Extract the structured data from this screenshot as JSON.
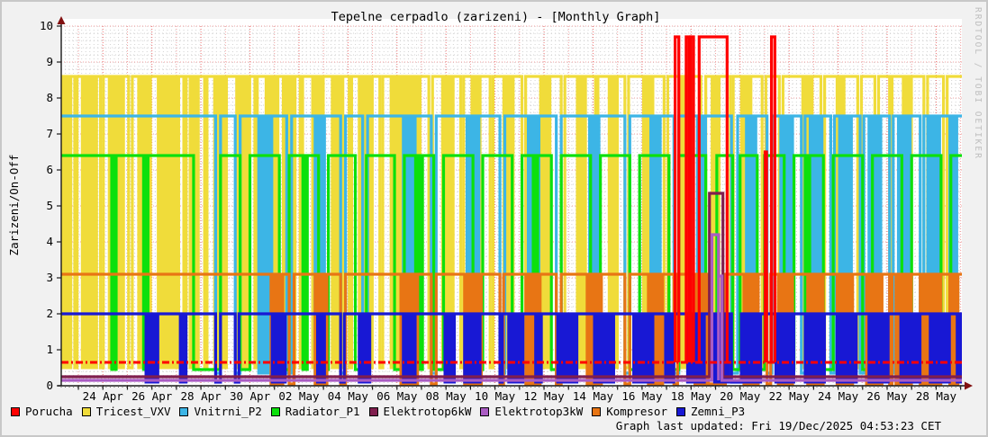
{
  "title": "Tepelne cerpadlo (zarizeni) - [Monthly Graph]",
  "watermark": "RRDTOOL / TOBI OETIKER",
  "footer": "Graph last updated: Fri 19/Dec/2025 04:53:23 CET",
  "y_axis": {
    "label": "Zarizeni/On-Off",
    "min": 0,
    "max": 10,
    "major_step": 1,
    "minor_step": 0.2
  },
  "x_axis": {
    "span_days": 36.75,
    "day_tick_offset": 0.7,
    "minor_per_day": 6,
    "tick_labels": [
      {
        "d": 1.7,
        "label": "24 Apr"
      },
      {
        "d": 3.7,
        "label": "26 Apr"
      },
      {
        "d": 5.7,
        "label": "28 Apr"
      },
      {
        "d": 7.7,
        "label": "30 Apr"
      },
      {
        "d": 9.7,
        "label": "02 May"
      },
      {
        "d": 11.7,
        "label": "04 May"
      },
      {
        "d": 13.7,
        "label": "06 May"
      },
      {
        "d": 15.7,
        "label": "08 May"
      },
      {
        "d": 17.7,
        "label": "10 May"
      },
      {
        "d": 19.7,
        "label": "12 May"
      },
      {
        "d": 21.7,
        "label": "14 May"
      },
      {
        "d": 23.7,
        "label": "16 May"
      },
      {
        "d": 25.7,
        "label": "18 May"
      },
      {
        "d": 27.7,
        "label": "20 May"
      },
      {
        "d": 29.7,
        "label": "22 May"
      },
      {
        "d": 31.7,
        "label": "24 May"
      },
      {
        "d": 33.7,
        "label": "26 May"
      },
      {
        "d": 35.7,
        "label": "28 May"
      }
    ]
  },
  "colors": {
    "grid_major": "#f2a0a0",
    "grid_major_labeled": "#ee7272",
    "grid_minor": "#d2d2d2",
    "axis": "#1a1a1a",
    "arrow": "#821010",
    "plot_bg": "#ffffff"
  },
  "legend": [
    {
      "name": "Porucha",
      "color": "#ff0000"
    },
    {
      "name": "Tricest_VXV",
      "color": "#f0dc3a"
    },
    {
      "name": "Vnitrni_P2",
      "color": "#3cb5e6"
    },
    {
      "name": "Radiator_P1",
      "color": "#0ce00c"
    },
    {
      "name": "Elektrotop6kW",
      "color": "#801e4e"
    },
    {
      "name": "Elektrotop3kW",
      "color": "#aa5cc3"
    },
    {
      "name": "Kompresor",
      "color": "#e87514"
    },
    {
      "name": "Zemni_P3",
      "color": "#1818d4"
    }
  ],
  "chart_data": {
    "type": "line",
    "subtype": "on-off square-wave (RRDtool device status, monthly)",
    "x_range_days": [
      0,
      36.75
    ],
    "ylim": [
      0,
      10
    ],
    "note": "Each device toggles between its own on-level and off-level. 'b' = rapid-toggle burst (solid block), 'o' = off dip; numeric third value = pulse to that level. Times in days from plot start (~22 Apr).",
    "series": [
      {
        "name": "Tricest_VXV",
        "color": "#f0dc3a",
        "on": 8.6,
        "off": 0.5,
        "default": "on",
        "events": [
          [
            0,
            0.45,
            "b"
          ],
          [
            0.55,
            0.65,
            "o"
          ],
          [
            0.8,
            1.5,
            "b"
          ],
          [
            1.6,
            1.72,
            "o"
          ],
          [
            1.9,
            2.6,
            "b"
          ],
          [
            2.75,
            2.9,
            "o"
          ],
          [
            3.1,
            3.7,
            "b"
          ],
          [
            3.9,
            4.85,
            "b"
          ],
          [
            5.0,
            5.1,
            "o"
          ],
          [
            5.2,
            5.65,
            "b"
          ],
          [
            5.85,
            5.95,
            "o"
          ],
          [
            6.2,
            6.8,
            "b"
          ],
          [
            7.1,
            7.75,
            "b"
          ],
          [
            7.9,
            8.0,
            "o"
          ],
          [
            8.3,
            8.9,
            "b"
          ],
          [
            9.0,
            9.6,
            "b"
          ],
          [
            9.75,
            9.85,
            "o"
          ],
          [
            10.2,
            10.75,
            "b"
          ],
          [
            11.0,
            11.55,
            "b"
          ],
          [
            11.75,
            11.85,
            "o"
          ],
          [
            12.1,
            12.75,
            "b"
          ],
          [
            13.0,
            13.12,
            "o"
          ],
          [
            13.4,
            14.7,
            "b"
          ],
          [
            15.0,
            15.15,
            "o"
          ],
          [
            15.5,
            16.05,
            "b"
          ],
          [
            16.3,
            16.42,
            "o"
          ],
          [
            16.7,
            17.15,
            "b"
          ],
          [
            17.5,
            17.62,
            "o"
          ],
          [
            18.0,
            18.5,
            "b"
          ],
          [
            18.8,
            18.95,
            "o"
          ],
          [
            19.5,
            20.0,
            "b"
          ],
          [
            20.4,
            20.55,
            "o"
          ],
          [
            21.0,
            21.45,
            "b"
          ],
          [
            21.8,
            21.9,
            "o"
          ],
          [
            22.3,
            22.75,
            "b"
          ],
          [
            23.0,
            23.15,
            "o"
          ],
          [
            23.7,
            24.2,
            "b"
          ],
          [
            24.6,
            24.75,
            "o"
          ],
          [
            25.2,
            25.5,
            "b"
          ],
          [
            25.55,
            25.68,
            "o"
          ],
          [
            26.1,
            26.3,
            "o"
          ],
          [
            26.5,
            26.9,
            "b"
          ],
          [
            27.3,
            27.42,
            "o"
          ],
          [
            27.7,
            28.2,
            "b"
          ],
          [
            28.6,
            28.75,
            "o"
          ],
          [
            29.3,
            29.45,
            "o"
          ],
          [
            30.2,
            30.7,
            "b"
          ],
          [
            31.0,
            31.15,
            "o"
          ],
          [
            31.6,
            32.0,
            "b"
          ],
          [
            32.5,
            32.65,
            "o"
          ],
          [
            33.2,
            33.35,
            "o"
          ],
          [
            33.8,
            33.9,
            "o"
          ],
          [
            34.3,
            34.75,
            "b"
          ],
          [
            35.2,
            35.35,
            "o"
          ],
          [
            36.0,
            36.15,
            "o"
          ]
        ]
      },
      {
        "name": "Vnitrni_P2",
        "color": "#3cb5e6",
        "on": 7.5,
        "off": 0.35,
        "default": "on",
        "events": [
          [
            6.3,
            6.5,
            "o"
          ],
          [
            7.1,
            7.3,
            "o"
          ],
          [
            8.0,
            8.65,
            "b"
          ],
          [
            9.2,
            9.4,
            "o"
          ],
          [
            10.3,
            10.8,
            "b"
          ],
          [
            11.4,
            11.6,
            "o"
          ],
          [
            12.3,
            12.5,
            "o"
          ],
          [
            13.9,
            14.5,
            "b"
          ],
          [
            15.1,
            15.3,
            "o"
          ],
          [
            16.5,
            17.1,
            "b"
          ],
          [
            17.9,
            18.1,
            "o"
          ],
          [
            19.0,
            19.55,
            "b"
          ],
          [
            20.2,
            20.4,
            "o"
          ],
          [
            21.5,
            22.0,
            "b"
          ],
          [
            23.0,
            23.2,
            "o"
          ],
          [
            24.0,
            24.5,
            "b"
          ],
          [
            25.0,
            25.2,
            "o"
          ],
          [
            25.9,
            26.35,
            "b"
          ],
          [
            27.35,
            27.6,
            "o"
          ],
          [
            27.9,
            28.4,
            "b"
          ],
          [
            28.8,
            29.0,
            "o"
          ],
          [
            29.3,
            29.9,
            "b"
          ],
          [
            30.2,
            30.35,
            "o"
          ],
          [
            30.5,
            31.1,
            "b"
          ],
          [
            31.4,
            31.55,
            "o"
          ],
          [
            31.7,
            32.3,
            "b"
          ],
          [
            32.6,
            32.75,
            "o"
          ],
          [
            32.9,
            33.5,
            "b"
          ],
          [
            33.8,
            33.95,
            "o"
          ],
          [
            34.1,
            34.7,
            "b"
          ],
          [
            35.05,
            35.2,
            "o"
          ],
          [
            35.3,
            35.9,
            "b"
          ],
          [
            36.2,
            36.6,
            "b"
          ]
        ]
      },
      {
        "name": "Radiator_P1",
        "color": "#0ce00c",
        "on": 6.4,
        "off": 0.45,
        "default": "on",
        "events": [
          [
            2.0,
            2.3,
            "b"
          ],
          [
            3.3,
            3.6,
            "b"
          ],
          [
            5.4,
            6.5,
            "o"
          ],
          [
            7.3,
            7.7,
            "o"
          ],
          [
            8.9,
            9.3,
            "o"
          ],
          [
            9.8,
            10.1,
            "b"
          ],
          [
            10.5,
            10.9,
            "o"
          ],
          [
            12.0,
            12.45,
            "o"
          ],
          [
            13.6,
            14.0,
            "o"
          ],
          [
            14.4,
            14.8,
            "b"
          ],
          [
            15.2,
            15.6,
            "o"
          ],
          [
            16.8,
            17.2,
            "o"
          ],
          [
            18.4,
            18.8,
            "o"
          ],
          [
            19.2,
            19.5,
            "b"
          ],
          [
            20.0,
            20.4,
            "o"
          ],
          [
            21.6,
            22.0,
            "o"
          ],
          [
            23.2,
            23.6,
            "o"
          ],
          [
            24.8,
            25.2,
            "o"
          ],
          [
            26.3,
            26.75,
            "o"
          ],
          [
            27.4,
            27.7,
            "o"
          ],
          [
            28.4,
            28.7,
            "o"
          ],
          [
            29.5,
            29.9,
            "o"
          ],
          [
            30.3,
            30.6,
            "b"
          ],
          [
            31.1,
            31.5,
            "o"
          ],
          [
            32.7,
            33.1,
            "o"
          ],
          [
            34.3,
            34.7,
            "o"
          ],
          [
            35.9,
            36.3,
            "o"
          ]
        ]
      },
      {
        "name": "Kompresor",
        "color": "#e87514",
        "on": 3.1,
        "off": 0.05,
        "default": "on",
        "events": [
          [
            8.5,
            9.1,
            "b"
          ],
          [
            9.3,
            9.5,
            "o"
          ],
          [
            10.3,
            10.9,
            "b"
          ],
          [
            11.4,
            11.6,
            "o"
          ],
          [
            13.8,
            14.6,
            "b"
          ],
          [
            15.1,
            15.3,
            "o"
          ],
          [
            16.4,
            17.2,
            "b"
          ],
          [
            17.9,
            18.05,
            "o"
          ],
          [
            18.9,
            19.6,
            "b"
          ],
          [
            20.2,
            20.4,
            "o"
          ],
          [
            21.4,
            22.1,
            "b"
          ],
          [
            23.0,
            23.2,
            "o"
          ],
          [
            23.9,
            24.6,
            "b"
          ],
          [
            25.0,
            25.15,
            "o"
          ],
          [
            25.8,
            26.35,
            "b"
          ],
          [
            26.4,
            27.1,
            "o"
          ],
          [
            27.8,
            28.5,
            "b"
          ],
          [
            28.8,
            28.95,
            "o"
          ],
          [
            29.2,
            29.9,
            "b"
          ],
          [
            30.4,
            31.15,
            "b"
          ],
          [
            31.6,
            32.35,
            "b"
          ],
          [
            32.8,
            33.55,
            "b"
          ],
          [
            33.8,
            33.9,
            "o"
          ],
          [
            34.0,
            34.75,
            "b"
          ],
          [
            35.05,
            35.15,
            "o"
          ],
          [
            35.2,
            35.95,
            "b"
          ],
          [
            36.2,
            36.65,
            "b"
          ]
        ]
      },
      {
        "name": "Zemni_P3",
        "color": "#1818d4",
        "on": 2.0,
        "off": 0.1,
        "default": "on",
        "events": [
          [
            3.4,
            4.0,
            "b"
          ],
          [
            4.8,
            5.15,
            "b"
          ],
          [
            6.3,
            6.5,
            "o"
          ],
          [
            7.1,
            7.25,
            "o"
          ],
          [
            8.55,
            9.2,
            "b"
          ],
          [
            10.4,
            10.8,
            "b"
          ],
          [
            11.4,
            11.55,
            "o"
          ],
          [
            12.1,
            12.65,
            "b"
          ],
          [
            13.9,
            14.5,
            "b"
          ],
          [
            15.6,
            16.1,
            "b"
          ],
          [
            16.4,
            17.15,
            "b"
          ],
          [
            17.9,
            18.0,
            "o"
          ],
          [
            18.2,
            18.9,
            "b"
          ],
          [
            19.3,
            19.65,
            "b"
          ],
          [
            20.2,
            21.1,
            "b"
          ],
          [
            21.7,
            22.6,
            "b"
          ],
          [
            23.3,
            24.2,
            "b"
          ],
          [
            24.6,
            25.05,
            "b"
          ],
          [
            25.5,
            26.3,
            "b"
          ],
          [
            26.6,
            27.3,
            "b"
          ],
          [
            27.35,
            27.75,
            "o"
          ],
          [
            27.8,
            28.6,
            "b"
          ],
          [
            29.1,
            29.95,
            "b"
          ],
          [
            30.3,
            31.2,
            "b"
          ],
          [
            31.6,
            32.5,
            "b"
          ],
          [
            32.9,
            33.8,
            "b"
          ],
          [
            34.2,
            35.1,
            "b"
          ],
          [
            35.4,
            36.3,
            "b"
          ],
          [
            36.5,
            36.75,
            "b"
          ]
        ]
      },
      {
        "name": "Elektrotop6kW",
        "color": "#801e4e",
        "on": 5.35,
        "off": 0.25,
        "default": "off",
        "events": [
          [
            26.45,
            27.0,
            5.35
          ]
        ]
      },
      {
        "name": "Elektrotop3kW",
        "color": "#aa5cc3",
        "on": 4.2,
        "off": 0.15,
        "default": "off",
        "events": [
          [
            26.55,
            26.82,
            4.2
          ],
          [
            26.82,
            26.96,
            3.05
          ]
        ]
      },
      {
        "name": "Porucha",
        "color": "#ff0000",
        "on": 9.7,
        "off": 0.65,
        "default": "off",
        "dash": true,
        "events": [
          [
            25.05,
            25.2,
            9.7
          ],
          [
            25.5,
            25.62,
            9.7
          ],
          [
            25.68,
            25.8,
            9.7
          ],
          [
            26.03,
            27.17,
            9.7
          ],
          [
            28.72,
            28.78,
            6.5
          ],
          [
            28.98,
            29.12,
            9.7
          ]
        ]
      }
    ]
  }
}
